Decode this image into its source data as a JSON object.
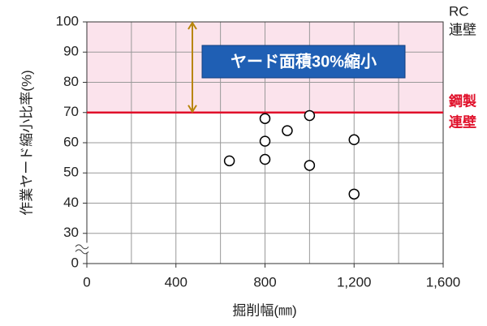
{
  "chart_data": {
    "type": "scatter",
    "y_label": "作業ヤード縮小比率(%)",
    "x_label": "掘削幅(㎜)",
    "annotation": "ヤード面積30%縮小",
    "right_label_top": [
      "RC",
      "連壁"
    ],
    "right_label_ref": [
      "鋼製",
      "連壁"
    ],
    "xlim": [
      0,
      1600
    ],
    "ylim": [
      0,
      100
    ],
    "y_break": true,
    "xticks": [
      0,
      400,
      800,
      {
        "value": 1200,
        "label": "1,200"
      },
      {
        "value": 1600,
        "label": "1,600"
      }
    ],
    "xgrid": [
      200,
      400,
      600,
      800,
      1000,
      1200,
      1400
    ],
    "yticks": [
      0,
      30,
      40,
      50,
      60,
      70,
      80,
      90,
      100
    ],
    "grid": true,
    "shaded_range": [
      70,
      100
    ],
    "shade_color": "#fbe3ec",
    "reference_line": 70,
    "reference_color": "#e0102a",
    "arrow": [
      100,
      70
    ],
    "arrow_color": "#b8860b",
    "series": [
      {
        "name": null,
        "color": "#000",
        "x": [
          640,
          800,
          800,
          800,
          900,
          1000,
          1000,
          1200,
          1200
        ],
        "values": [
          54,
          68,
          60.5,
          54.5,
          64,
          69,
          52.5,
          61,
          43
        ]
      }
    ]
  }
}
